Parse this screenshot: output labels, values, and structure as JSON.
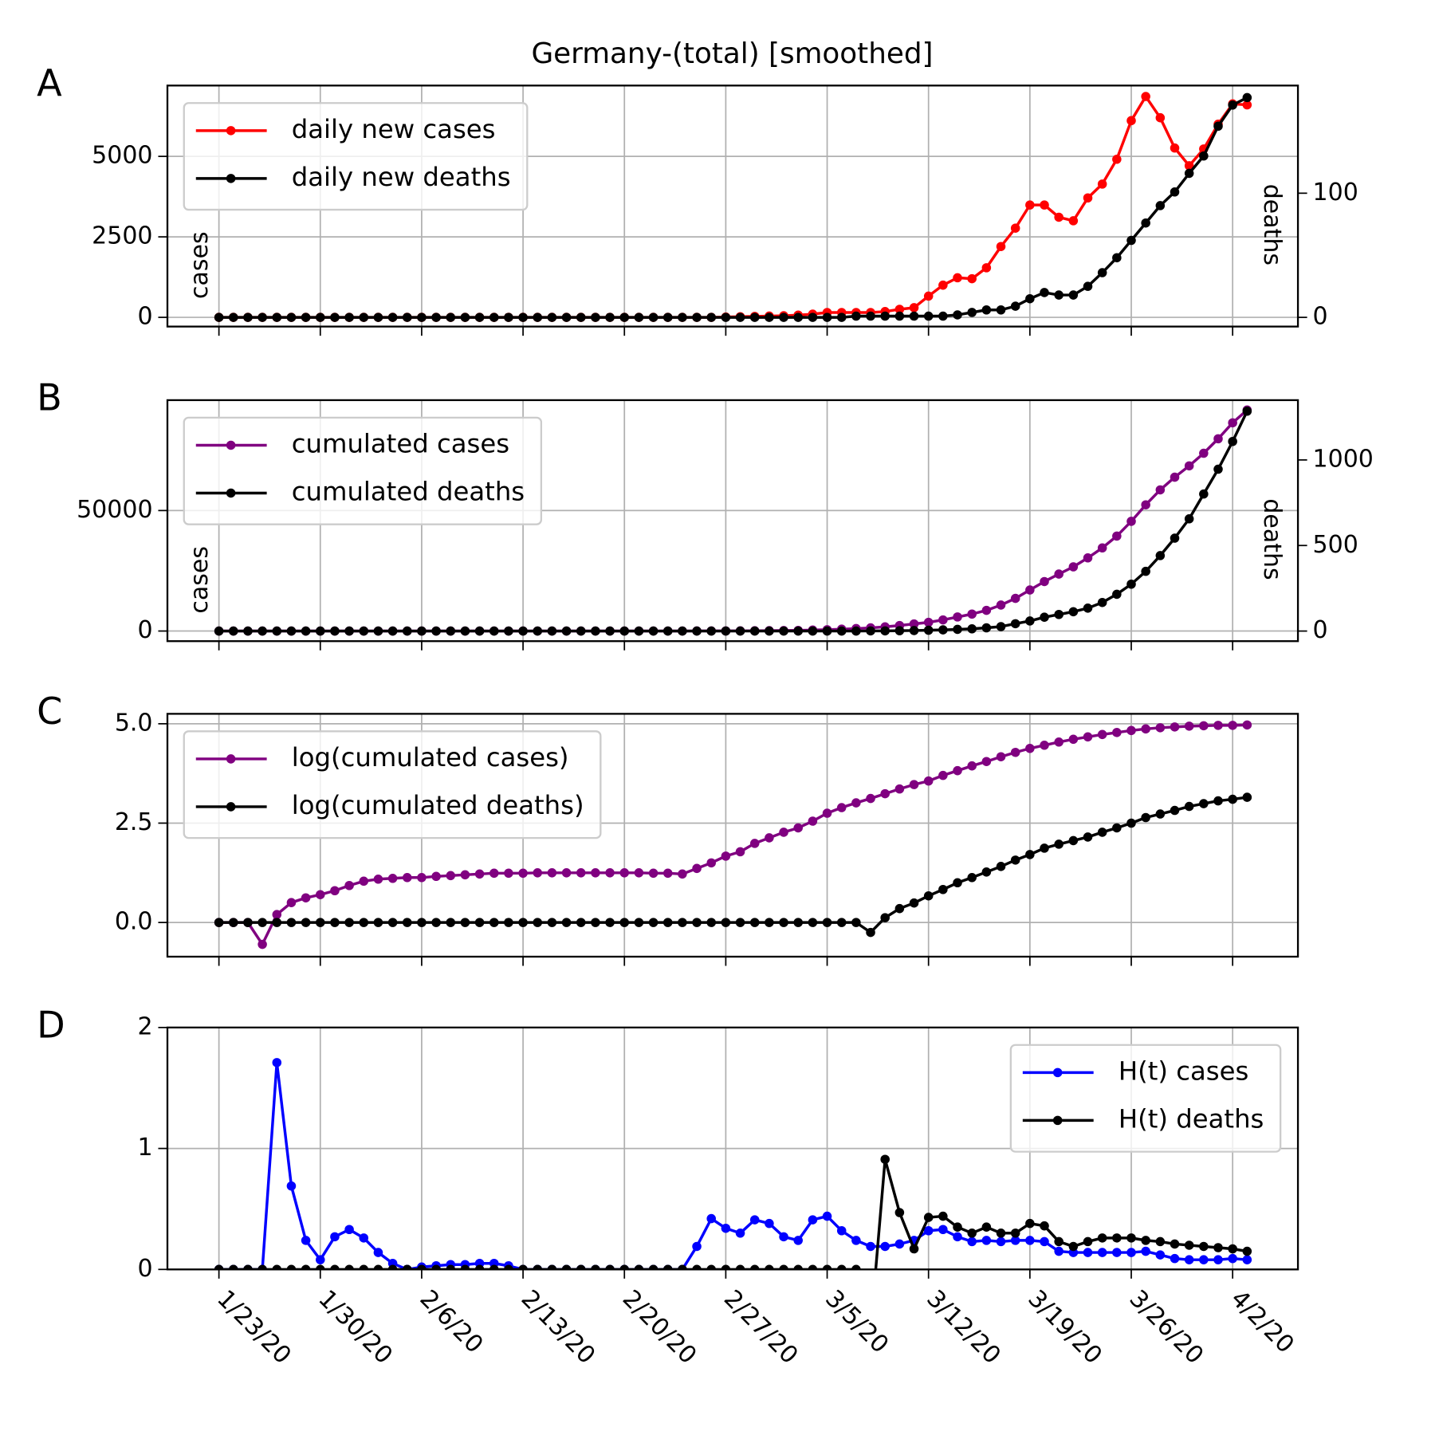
{
  "chart_data": [
    {
      "type": "line",
      "title": "Germany-(total) [smoothed]",
      "panel": "A",
      "ylabel": "cases",
      "y2label": "deaths",
      "legend": "upper left",
      "grid": true,
      "x": [
        "1/23/20",
        "1/24/20",
        "1/25/20",
        "1/26/20",
        "1/27/20",
        "1/28/20",
        "1/29/20",
        "1/30/20",
        "1/31/20",
        "2/1/20",
        "2/2/20",
        "2/3/20",
        "2/4/20",
        "2/5/20",
        "2/6/20",
        "2/7/20",
        "2/8/20",
        "2/9/20",
        "2/10/20",
        "2/11/20",
        "2/12/20",
        "2/13/20",
        "2/14/20",
        "2/15/20",
        "2/16/20",
        "2/17/20",
        "2/18/20",
        "2/19/20",
        "2/20/20",
        "2/21/20",
        "2/22/20",
        "2/23/20",
        "2/24/20",
        "2/25/20",
        "2/26/20",
        "2/27/20",
        "2/28/20",
        "2/29/20",
        "3/1/20",
        "3/2/20",
        "3/3/20",
        "3/4/20",
        "3/5/20",
        "3/6/20",
        "3/7/20",
        "3/8/20",
        "3/9/20",
        "3/10/20",
        "3/11/20",
        "3/12/20",
        "3/13/20",
        "3/14/20",
        "3/15/20",
        "3/16/20",
        "3/17/20",
        "3/18/20",
        "3/19/20",
        "3/20/20",
        "3/21/20",
        "3/22/20",
        "3/23/20",
        "3/24/20",
        "3/25/20",
        "3/26/20",
        "3/27/20",
        "3/28/20",
        "3/29/20",
        "3/30/20",
        "3/31/20",
        "4/1/20",
        "4/2/20",
        "4/3/20"
      ],
      "xticks": [
        "1/23/20",
        "1/30/20",
        "2/6/20",
        "2/13/20",
        "2/20/20",
        "2/27/20",
        "3/5/20",
        "3/12/20",
        "3/19/20",
        "3/26/20",
        "4/2/20"
      ],
      "ylim": [
        -286,
        7200
      ],
      "yticks": [
        0,
        2500,
        5000
      ],
      "y2lim": [
        -7.4,
        186.7
      ],
      "y2ticks": [
        0,
        100
      ],
      "series": [
        {
          "name": "daily new cases",
          "color": "#ff0000",
          "values": [
            0,
            0,
            0,
            0,
            0,
            0,
            0,
            0,
            0,
            0,
            0,
            0,
            0,
            0,
            0,
            0,
            0,
            0,
            0,
            0,
            0,
            0,
            0,
            0,
            0,
            0,
            0,
            0,
            0,
            0,
            0,
            0,
            0,
            0,
            0,
            10,
            20,
            30,
            40,
            50,
            70,
            100,
            150,
            150,
            150,
            150,
            180,
            250,
            300,
            660,
            1000,
            1230,
            1200,
            1540,
            2200,
            2770,
            3490,
            3490,
            3110,
            3000,
            3710,
            4140,
            4910,
            6110,
            6860,
            6200,
            5260,
            4710,
            5230,
            6000,
            6630,
            6600
          ]
        },
        {
          "name": "daily new deaths",
          "color": "#000000",
          "axis": "y2",
          "values": [
            0,
            0,
            0,
            0,
            0,
            0,
            0,
            0,
            0,
            0,
            0,
            0,
            0,
            0,
            0,
            0,
            0,
            0,
            0,
            0,
            0,
            0,
            0,
            0,
            0,
            0,
            0,
            0,
            0,
            0,
            0,
            0,
            0,
            0,
            0,
            0,
            0,
            0,
            0,
            0,
            0,
            0,
            0,
            0,
            1,
            1,
            1,
            1,
            1,
            1,
            1,
            2,
            4,
            6,
            6,
            9,
            15,
            20,
            18,
            18,
            25,
            36,
            48,
            62,
            76,
            90,
            101,
            116,
            130,
            154,
            171,
            177
          ]
        }
      ]
    },
    {
      "type": "line",
      "panel": "B",
      "ylabel": "cases",
      "y2label": "deaths",
      "legend": "upper left",
      "grid": true,
      "x": [
        "1/23/20",
        "1/24/20",
        "1/25/20",
        "1/26/20",
        "1/27/20",
        "1/28/20",
        "1/29/20",
        "1/30/20",
        "1/31/20",
        "2/1/20",
        "2/2/20",
        "2/3/20",
        "2/4/20",
        "2/5/20",
        "2/6/20",
        "2/7/20",
        "2/8/20",
        "2/9/20",
        "2/10/20",
        "2/11/20",
        "2/12/20",
        "2/13/20",
        "2/14/20",
        "2/15/20",
        "2/16/20",
        "2/17/20",
        "2/18/20",
        "2/19/20",
        "2/20/20",
        "2/21/20",
        "2/22/20",
        "2/23/20",
        "2/24/20",
        "2/25/20",
        "2/26/20",
        "2/27/20",
        "2/28/20",
        "2/29/20",
        "3/1/20",
        "3/2/20",
        "3/3/20",
        "3/4/20",
        "3/5/20",
        "3/6/20",
        "3/7/20",
        "3/8/20",
        "3/9/20",
        "3/10/20",
        "3/11/20",
        "3/12/20",
        "3/13/20",
        "3/14/20",
        "3/15/20",
        "3/16/20",
        "3/17/20",
        "3/18/20",
        "3/19/20",
        "3/20/20",
        "3/21/20",
        "3/22/20",
        "3/23/20",
        "3/24/20",
        "3/25/20",
        "3/26/20",
        "3/27/20",
        "3/28/20",
        "3/29/20",
        "3/30/20",
        "3/31/20",
        "4/1/20",
        "4/2/20",
        "4/3/20"
      ],
      "xticks": [
        "1/23/20",
        "1/30/20",
        "2/6/20",
        "2/13/20",
        "2/20/20",
        "2/27/20",
        "3/5/20",
        "3/12/20",
        "3/19/20",
        "3/26/20",
        "4/2/20"
      ],
      "ylim": [
        -4200,
        95800
      ],
      "yticks": [
        0,
        50000
      ],
      "y2lim": [
        -59,
        1349.5
      ],
      "y2ticks": [
        0,
        500,
        1000
      ],
      "series": [
        {
          "name": "cumulated cases",
          "color": "#800080",
          "values": [
            1,
            1,
            1,
            0.3,
            2,
            3,
            4,
            5,
            6,
            9,
            11,
            12,
            13,
            13,
            13,
            14,
            15,
            16,
            17,
            18,
            18,
            18,
            18,
            18,
            18,
            18,
            18,
            18,
            18,
            18,
            18,
            18,
            21,
            29,
            42,
            55,
            79,
            110,
            151,
            204,
            269,
            417,
            562,
            776,
            1023,
            1318,
            1738,
            2291,
            2951,
            3610,
            4610,
            5840,
            7040,
            8580,
            10780,
            13550,
            17040,
            20530,
            23640,
            26640,
            30350,
            34490,
            39400,
            45510,
            52370,
            58570,
            63830,
            68540,
            73770,
            79770,
            86400,
            91700
          ]
        },
        {
          "name": "cumulated deaths",
          "color": "#000000",
          "axis": "y2",
          "values": [
            0,
            0,
            0,
            0,
            0,
            0,
            0,
            0,
            0,
            0,
            0,
            0,
            0,
            0,
            0,
            0,
            0,
            0,
            0,
            0,
            0,
            0,
            0,
            0,
            0,
            0,
            0,
            0,
            0,
            0,
            0,
            0,
            0,
            0,
            0,
            0,
            0,
            0,
            0,
            0,
            0,
            0,
            0,
            0,
            0,
            1,
            1,
            2,
            3,
            5,
            7,
            10,
            13,
            19,
            26,
            43,
            59,
            81,
            97,
            113,
            134,
            167,
            215,
            274,
            349,
            441,
            543,
            656,
            801,
            946,
            1108,
            1285
          ]
        }
      ]
    },
    {
      "type": "line",
      "panel": "C",
      "legend": "upper left",
      "grid": true,
      "x": [
        "1/23/20",
        "1/24/20",
        "1/25/20",
        "1/26/20",
        "1/27/20",
        "1/28/20",
        "1/29/20",
        "1/30/20",
        "1/31/20",
        "2/1/20",
        "2/2/20",
        "2/3/20",
        "2/4/20",
        "2/5/20",
        "2/6/20",
        "2/7/20",
        "2/8/20",
        "2/9/20",
        "2/10/20",
        "2/11/20",
        "2/12/20",
        "2/13/20",
        "2/14/20",
        "2/15/20",
        "2/16/20",
        "2/17/20",
        "2/18/20",
        "2/19/20",
        "2/20/20",
        "2/21/20",
        "2/22/20",
        "2/23/20",
        "2/24/20",
        "2/25/20",
        "2/26/20",
        "2/27/20",
        "2/28/20",
        "2/29/20",
        "3/1/20",
        "3/2/20",
        "3/3/20",
        "3/4/20",
        "3/5/20",
        "3/6/20",
        "3/7/20",
        "3/8/20",
        "3/9/20",
        "3/10/20",
        "3/11/20",
        "3/12/20",
        "3/13/20",
        "3/14/20",
        "3/15/20",
        "3/16/20",
        "3/17/20",
        "3/18/20",
        "3/19/20",
        "3/20/20",
        "3/21/20",
        "3/22/20",
        "3/23/20",
        "3/24/20",
        "3/25/20",
        "3/26/20",
        "3/27/20",
        "3/28/20",
        "3/29/20",
        "3/30/20",
        "3/31/20",
        "4/1/20",
        "4/2/20",
        "4/3/20"
      ],
      "xticks": [
        "1/23/20",
        "1/30/20",
        "2/6/20",
        "2/13/20",
        "2/20/20",
        "2/27/20",
        "3/5/20",
        "3/12/20",
        "3/19/20",
        "3/26/20",
        "4/2/20"
      ],
      "ylim": [
        -0.86,
        5.25
      ],
      "yticks": [
        {
          "value": 0,
          "label": "0.0"
        },
        2.5,
        {
          "value": 5,
          "label": "5.0"
        }
      ],
      "series": [
        {
          "name": "log(cumulated cases)",
          "color": "#800080",
          "values": [
            0,
            0,
            0,
            -0.55,
            0.2,
            0.5,
            0.62,
            0.7,
            0.8,
            0.93,
            1.04,
            1.09,
            1.11,
            1.13,
            1.13,
            1.16,
            1.18,
            1.2,
            1.22,
            1.24,
            1.24,
            1.24,
            1.25,
            1.25,
            1.25,
            1.25,
            1.25,
            1.25,
            1.25,
            1.25,
            1.24,
            1.24,
            1.22,
            1.36,
            1.5,
            1.67,
            1.78,
            1.99,
            2.13,
            2.27,
            2.38,
            2.55,
            2.75,
            2.89,
            3.01,
            3.12,
            3.24,
            3.36,
            3.47,
            3.56,
            3.7,
            3.82,
            3.94,
            4.05,
            4.17,
            4.28,
            4.38,
            4.46,
            4.54,
            4.61,
            4.67,
            4.73,
            4.78,
            4.83,
            4.87,
            4.9,
            4.92,
            4.94,
            4.95,
            4.96,
            4.96,
            4.97
          ]
        },
        {
          "name": "log(cumulated deaths)",
          "color": "#000000",
          "values": [
            0,
            0,
            0,
            0,
            0,
            0,
            0,
            0,
            0,
            0,
            0,
            0,
            0,
            0,
            0,
            0,
            0,
            0,
            0,
            0,
            0,
            0,
            0,
            0,
            0,
            0,
            0,
            0,
            0,
            0,
            0,
            0,
            0,
            0,
            0,
            0,
            0,
            0,
            0,
            0,
            0,
            0,
            0,
            0,
            0,
            -0.25,
            0.12,
            0.35,
            0.49,
            0.67,
            0.83,
            1.0,
            1.13,
            1.27,
            1.41,
            1.57,
            1.71,
            1.87,
            1.97,
            2.06,
            2.15,
            2.27,
            2.38,
            2.5,
            2.64,
            2.73,
            2.82,
            2.92,
            2.99,
            3.06,
            3.1,
            3.15
          ]
        }
      ]
    },
    {
      "type": "line",
      "panel": "D",
      "legend": "upper right",
      "grid": true,
      "x": [
        "1/23/20",
        "1/24/20",
        "1/25/20",
        "1/26/20",
        "1/27/20",
        "1/28/20",
        "1/29/20",
        "1/30/20",
        "1/31/20",
        "2/1/20",
        "2/2/20",
        "2/3/20",
        "2/4/20",
        "2/5/20",
        "2/6/20",
        "2/7/20",
        "2/8/20",
        "2/9/20",
        "2/10/20",
        "2/11/20",
        "2/12/20",
        "2/13/20",
        "2/14/20",
        "2/15/20",
        "2/16/20",
        "2/17/20",
        "2/18/20",
        "2/19/20",
        "2/20/20",
        "2/21/20",
        "2/22/20",
        "2/23/20",
        "2/24/20",
        "2/25/20",
        "2/26/20",
        "2/27/20",
        "2/28/20",
        "2/29/20",
        "3/1/20",
        "3/2/20",
        "3/3/20",
        "3/4/20",
        "3/5/20",
        "3/6/20",
        "3/7/20",
        "3/8/20",
        "3/9/20",
        "3/10/20",
        "3/11/20",
        "3/12/20",
        "3/13/20",
        "3/14/20",
        "3/15/20",
        "3/16/20",
        "3/17/20",
        "3/18/20",
        "3/19/20",
        "3/20/20",
        "3/21/20",
        "3/22/20",
        "3/23/20",
        "3/24/20",
        "3/25/20",
        "3/26/20",
        "3/27/20",
        "3/28/20",
        "3/29/20",
        "3/30/20",
        "3/31/20",
        "4/1/20",
        "4/2/20",
        "4/3/20"
      ],
      "xticks": [
        "1/23/20",
        "1/30/20",
        "2/6/20",
        "2/13/20",
        "2/20/20",
        "2/27/20",
        "3/5/20",
        "3/12/20",
        "3/19/20",
        "3/26/20",
        "4/2/20"
      ],
      "xticklabels": true,
      "ylim": [
        0,
        2
      ],
      "yticks": [
        0,
        1,
        2
      ],
      "series": [
        {
          "name": "H(t) cases",
          "color": "#0000ff",
          "values": [
            0,
            0,
            0,
            0,
            1.71,
            0.69,
            0.24,
            0.08,
            0.27,
            0.33,
            0.26,
            0.14,
            0.05,
            0,
            0.02,
            0.03,
            0.04,
            0.04,
            0.05,
            0.05,
            0.03,
            0,
            0,
            0,
            0,
            0,
            0,
            0,
            0,
            0,
            0,
            0,
            0,
            0.19,
            0.42,
            0.34,
            0.3,
            0.41,
            0.38,
            0.27,
            0.24,
            0.41,
            0.44,
            0.32,
            0.24,
            0.19,
            0.19,
            0.21,
            0.24,
            0.32,
            0.33,
            0.27,
            0.23,
            0.24,
            0.23,
            0.24,
            0.24,
            0.23,
            0.15,
            0.14,
            0.14,
            0.14,
            0.14,
            0.14,
            0.15,
            0.12,
            0.09,
            0.08,
            0.08,
            0.08,
            0.09,
            0.08
          ]
        },
        {
          "name": "H(t) deaths",
          "color": "#000000",
          "values": [
            0,
            0,
            0,
            0,
            0,
            0,
            0,
            0,
            0,
            0,
            0,
            0,
            0,
            0,
            0,
            0,
            0,
            0,
            0,
            0,
            0,
            0,
            0,
            0,
            0,
            0,
            0,
            0,
            0,
            0,
            0,
            0,
            0,
            0,
            0,
            0,
            0,
            0,
            0,
            0,
            0,
            0,
            0,
            0,
            0,
            -0.5,
            0.91,
            0.47,
            0.17,
            0.43,
            0.44,
            0.35,
            0.3,
            0.35,
            0.3,
            0.3,
            0.38,
            0.36,
            0.23,
            0.19,
            0.23,
            0.26,
            0.26,
            0.26,
            0.24,
            0.23,
            0.21,
            0.2,
            0.19,
            0.18,
            0.17,
            0.15
          ]
        }
      ]
    }
  ]
}
